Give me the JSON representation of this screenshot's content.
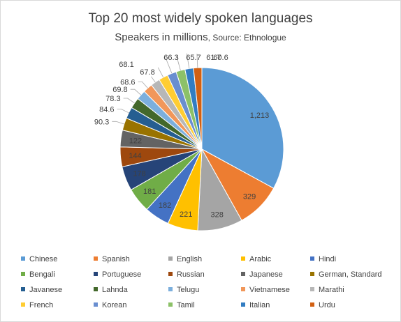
{
  "chart_data": {
    "type": "pie",
    "title": "Top 20 most widely spoken languages",
    "subtitle": "Speakers in millions",
    "source": "Source: Ethnologue",
    "categories": [
      "Chinese",
      "Spanish",
      "English",
      "Arabic",
      "Hindi",
      "Bengali",
      "Portuguese",
      "Russian",
      "Japanese",
      "German, Standard",
      "Javanese",
      "Lahnda",
      "Telugu",
      "Vietnamese",
      "Marathi",
      "French",
      "Korean",
      "Tamil",
      "Italian",
      "Urdu"
    ],
    "values": [
      1213,
      329,
      328,
      221,
      182,
      181,
      178,
      144,
      122,
      90.3,
      84.6,
      78.3,
      69.8,
      68.6,
      68.1,
      67.8,
      66.3,
      65.7,
      61.7,
      60.6
    ],
    "data_labels": [
      "1,213",
      "329",
      "328",
      "221",
      "182",
      "181",
      "178",
      "144",
      "122",
      "90.3",
      "84.6",
      "78.3",
      "69.8",
      "68.6",
      "68.1",
      "67.8",
      "66.3",
      "65.7",
      "61.7",
      "60.6"
    ],
    "colors": [
      "#5b9bd5",
      "#ed7d31",
      "#a5a5a5",
      "#ffc000",
      "#4472c4",
      "#70ad47",
      "#264478",
      "#9e480e",
      "#636363",
      "#997300",
      "#255e91",
      "#43682b",
      "#7cafdd",
      "#f1975a",
      "#b7b7b7",
      "#ffcd33",
      "#698ed0",
      "#8cc168",
      "#327dc2",
      "#d26012"
    ],
    "legend_position": "bottom"
  }
}
